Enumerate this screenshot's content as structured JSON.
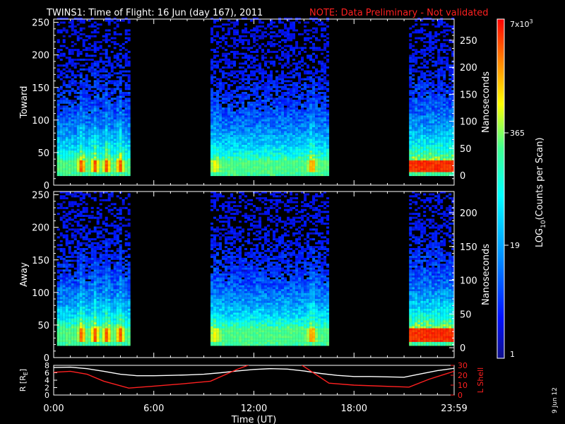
{
  "title": {
    "main": "TWINS1: Time of Flight: 16 Jun (day 167), 2011",
    "note": "NOTE: Data Preliminary - Not validated",
    "note_color": "#ff2020"
  },
  "date_stamp": "9 Jun 12",
  "chart_data": [
    {
      "type": "heatmap",
      "name": "Toward",
      "ylabel": "Toward",
      "ylim": [
        0,
        255
      ],
      "yticks": [
        "0",
        "50",
        "100",
        "150",
        "200",
        "250"
      ],
      "right_axis": {
        "label": "Nanoseconds",
        "ticks": [
          "0",
          "50",
          "100",
          "150",
          "200",
          "250"
        ]
      },
      "data_intervals_hours": [
        [
          0.2,
          4.5
        ],
        [
          9.4,
          16.5
        ],
        [
          21.3,
          23.98
        ]
      ],
      "peak_channel_range": [
        18,
        35
      ]
    },
    {
      "type": "heatmap",
      "name": "Away",
      "ylabel": "Away",
      "ylim": [
        0,
        255
      ],
      "yticks": [
        "0",
        "50",
        "100",
        "150",
        "200",
        "250"
      ],
      "right_axis": {
        "label": "Nanoseconds",
        "ticks": [
          "0",
          "50",
          "100",
          "150",
          "200"
        ]
      },
      "data_intervals_hours": [
        [
          0.2,
          4.5
        ],
        [
          9.4,
          16.5
        ],
        [
          21.3,
          23.98
        ]
      ],
      "peak_channel_range": [
        22,
        42
      ]
    },
    {
      "type": "line",
      "name": "orbit",
      "ylabel": "R [R",
      "ylabel_sub": "E",
      "ylabel_end": "]",
      "ylim": [
        0,
        8
      ],
      "yticks": [
        "0",
        "2",
        "4",
        "6",
        "8"
      ],
      "right_axis": {
        "label": "L Shell",
        "ticks": [
          "0",
          "10",
          "20",
          "30"
        ],
        "color": "#ff2020"
      },
      "xlabel": "Time (UT)",
      "xticks": [
        "0:00",
        "6:00",
        "12:00",
        "18:00",
        "23:59"
      ],
      "series": [
        {
          "color": "#ffffff",
          "x": [
            0,
            1,
            2,
            3,
            4,
            5,
            6,
            7,
            8,
            9,
            10,
            11,
            12,
            13,
            14,
            15,
            16,
            17,
            18,
            19,
            20,
            21,
            22,
            23,
            24
          ],
          "y": [
            7.4,
            7.5,
            7.1,
            6.4,
            5.6,
            5.2,
            5.2,
            5.3,
            5.4,
            5.6,
            6.0,
            6.5,
            6.9,
            7.1,
            7.0,
            6.5,
            5.8,
            5.3,
            5.0,
            5.0,
            4.9,
            4.8,
            5.7,
            6.6,
            7.2
          ]
        },
        {
          "color": "#ff2020",
          "x": [
            0,
            1,
            2,
            3,
            4.5,
            6,
            7.5,
            9.4,
            11,
            11.8,
            14.8,
            16.5,
            18,
            21.3,
            22.5,
            24
          ],
          "y": [
            23,
            24,
            21,
            14,
            7,
            9,
            11,
            14,
            26,
            31,
            31,
            12,
            10,
            8,
            16,
            24
          ]
        }
      ]
    }
  ],
  "colorbar": {
    "label_main": "LOG",
    "label_sub": "10",
    "label_end": "(Counts per Scan)",
    "ticks": [
      {
        "label": "7x10",
        "exp": "3",
        "value": 7000
      },
      {
        "label": "365",
        "value": 365
      },
      {
        "label": "19",
        "value": 19
      },
      {
        "label": "1",
        "value": 1
      }
    ]
  }
}
